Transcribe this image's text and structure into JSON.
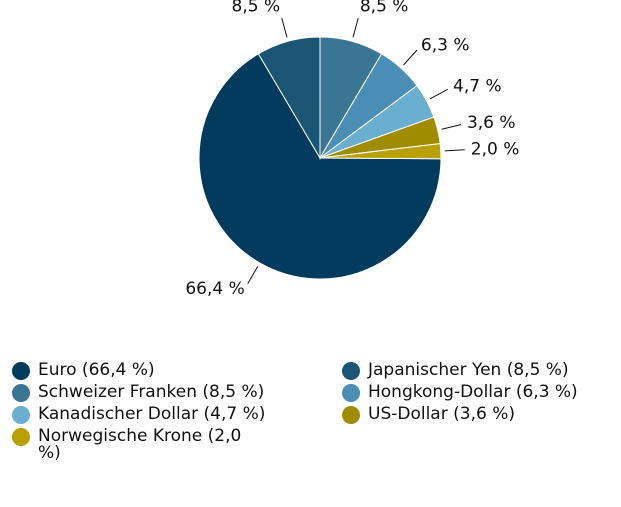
{
  "chart_data": {
    "type": "pie",
    "categories": [
      "Euro (66,4 %)",
      "Japanischer Yen (8,5 %)",
      "Schweizer Franken (8,5 %)",
      "Hongkong-Dollar (6,3 %)",
      "Kanadischer Dollar (4,7 %)",
      "US-Dollar (3,6 %)",
      "Norwegische Krone (2,0 %)"
    ],
    "values": [
      66.4,
      8.5,
      8.5,
      6.3,
      4.7,
      3.6,
      2.0
    ],
    "value_labels": [
      "66,4 %",
      "8,5 %",
      "8,5 %",
      "6,3 %",
      "4,7 %",
      "3,6 %",
      "2,0 %"
    ],
    "colors": [
      "#003a5c",
      "#1a5574",
      "#3a7594",
      "#4a8db5",
      "#6aaed0",
      "#a08c00",
      "#b8a000"
    ]
  }
}
